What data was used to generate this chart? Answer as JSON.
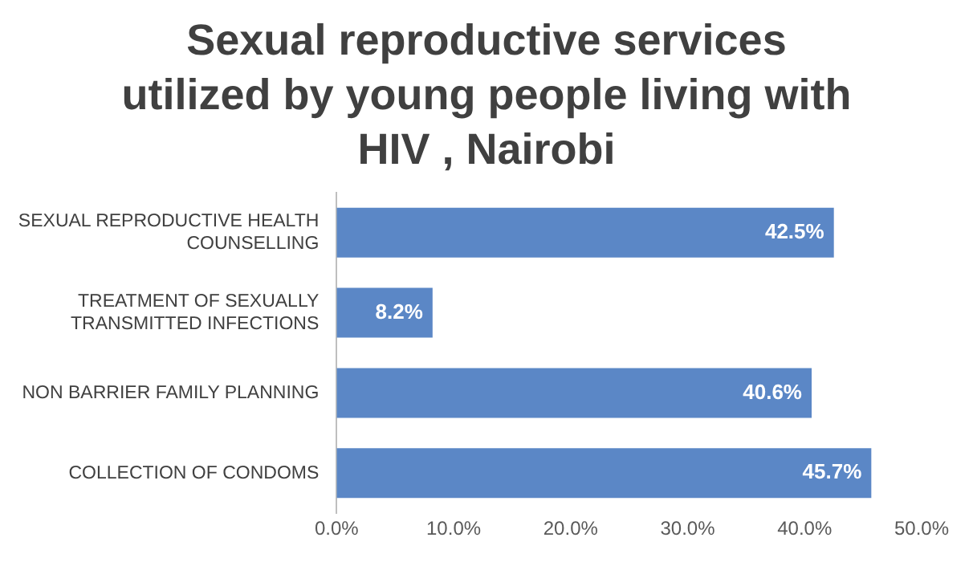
{
  "chart_data": {
    "type": "bar",
    "orientation": "horizontal",
    "title": "Sexual reproductive services utilized by young people living with HIV , Nairobi",
    "categories": [
      "SEXUAL REPRODUCTIVE HEALTH COUNSELLING",
      "TREATMENT OF SEXUALLY TRANSMITTED INFECTIONS",
      "NON BARRIER FAMILY PLANNING",
      "COLLECTION OF CONDOMS"
    ],
    "values": [
      42.5,
      8.2,
      40.6,
      45.7
    ],
    "color": "#5b87c6",
    "value_labels": [
      "42.5%",
      "8.2%",
      "40.6%",
      "45.7%"
    ],
    "xlim": [
      0,
      50
    ],
    "xticks": [
      {
        "value": 0,
        "label": "0.0%"
      },
      {
        "value": 10,
        "label": "10.0%"
      },
      {
        "value": 20,
        "label": "20.0%"
      },
      {
        "value": 30,
        "label": "30.0%"
      },
      {
        "value": 40,
        "label": "40.0%"
      },
      {
        "value": 50,
        "label": "50.0%"
      }
    ],
    "grid": false,
    "legend": false
  }
}
